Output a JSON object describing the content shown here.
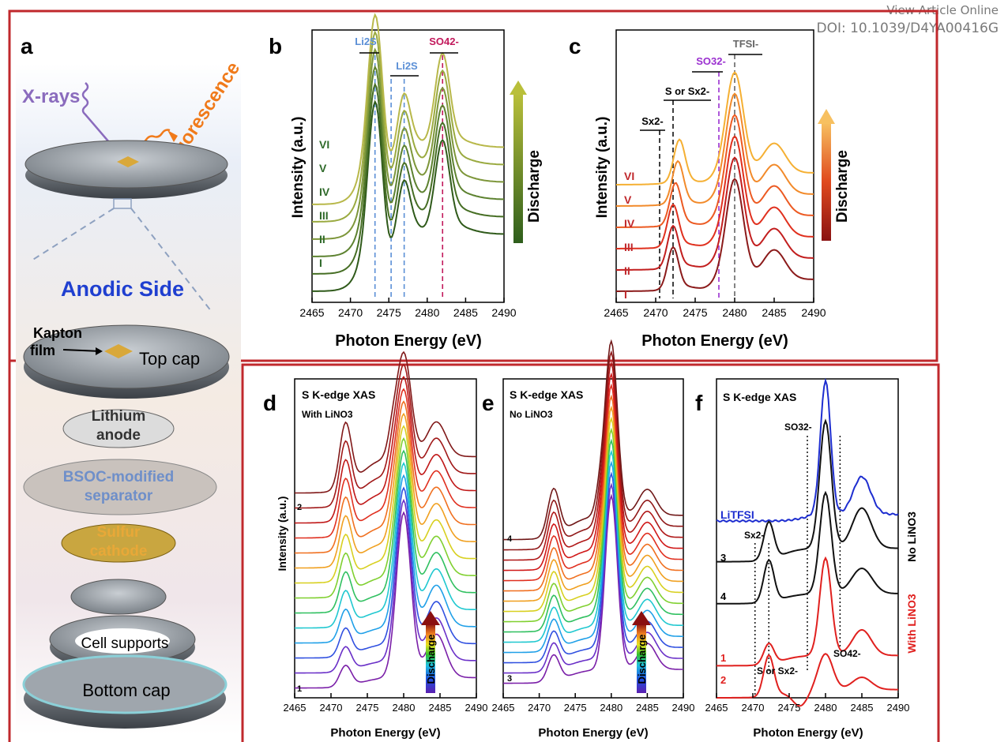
{
  "header": {
    "view_online": "View Article Online",
    "doi": "DOI: 10.1039/D4YA00416G"
  },
  "colors": {
    "frame_red": "#c0282c",
    "anodic_blue": "#1f3fd0",
    "xray_purple": "#8a6bbd",
    "fluorescence_orange": "#f07a1a",
    "li2s_blue": "#5b8fd6",
    "so4_red": "#c2185b",
    "so3_purple": "#9b30d0"
  },
  "panel_a": {
    "label": "a",
    "xrays": "X-rays",
    "fluorescence": "Fluorescence",
    "anodic_side": "Anodic Side",
    "kapton": "Kapton",
    "film": "film",
    "top_cap": "Top cap",
    "lithium_1": "Lithium",
    "lithium_2": "anode",
    "bsoc_1": "BSOC-modified",
    "bsoc_2": "separator",
    "sulfur_1": "Sulfur",
    "sulfur_2": "cathode",
    "cell_supports": "Cell supports",
    "bottom_cap": "Bottom cap"
  },
  "panel_b": {
    "label": "b",
    "ylabel": "Intensity (a.u.)",
    "xlabel": "Photon Energy (eV)",
    "arrow_label": "Discharge",
    "markers": [
      "Li2S",
      "Li2S",
      "SO42-"
    ],
    "stage_labels": [
      "VI",
      "V",
      "IV",
      "III",
      "II",
      "I"
    ]
  },
  "panel_c": {
    "label": "c",
    "ylabel": "Intensity (a.u.)",
    "xlabel": "Photon Energy (eV)",
    "arrow_label": "Discharge",
    "markers": [
      "Sx2-",
      "S or Sx2-",
      "SO32-",
      "TFSI-"
    ],
    "stage_labels": [
      "VI",
      "V",
      "IV",
      "III",
      "II",
      "I"
    ]
  },
  "panel_d": {
    "label": "d",
    "title": "S K-edge XAS",
    "subtitle": "With LiNO3",
    "ylabel": "Intensity (a.u.)",
    "xlabel": "Photon Energy (eV)",
    "arrow_label": "Discharge",
    "top_index": "2",
    "bottom_index": "1"
  },
  "panel_e": {
    "label": "e",
    "title": "S K-edge XAS",
    "subtitle": "No LiNO3",
    "xlabel": "Photon Energy (eV)",
    "arrow_label": "Discharge",
    "top_index": "4",
    "bottom_index": "3"
  },
  "panel_f": {
    "label": "f",
    "title": "S K-edge XAS",
    "xlabel": "Photon Energy (eV)",
    "litfsi": "LiTFSI",
    "so3": "SO32-",
    "sx": "Sx2-",
    "s_or_sx": "S or Sx2-",
    "so4": "SO42-",
    "no_lino3": "No LiNO3",
    "with_lino3": "With LiNO3",
    "curve_labels": [
      "3",
      "4",
      "1",
      "2"
    ]
  },
  "chart_data": [
    {
      "type": "line",
      "panel": "b",
      "xlabel": "Photon Energy (eV)",
      "ylabel": "Intensity (a.u.)",
      "xlim": [
        2465,
        2490
      ],
      "xticks": [
        2465,
        2470,
        2475,
        2480,
        2485,
        2490
      ],
      "series": [
        {
          "name": "I",
          "color": "#2f5a1a",
          "peaks": [
            2473.2,
            2475.3,
            2477.0,
            2482.0
          ]
        },
        {
          "name": "II",
          "color": "#466e24",
          "peaks": [
            2473.2,
            2475.3,
            2477.0,
            2482.0
          ]
        },
        {
          "name": "III",
          "color": "#5d8230",
          "peaks": [
            2473.2,
            2475.3,
            2477.0,
            2482.0
          ]
        },
        {
          "name": "IV",
          "color": "#7d963a",
          "peaks": [
            2473.2,
            2475.3,
            2477.0,
            2482.0
          ]
        },
        {
          "name": "V",
          "color": "#9aaa40",
          "peaks": [
            2473.2,
            2475.3,
            2477.0,
            2482.0
          ]
        },
        {
          "name": "VI",
          "color": "#b8b84a",
          "peaks": [
            2473.2,
            2475.3,
            2477.0,
            2482.0
          ]
        }
      ],
      "markers": [
        2473.2,
        2475.3,
        2477.0,
        2482.0
      ]
    },
    {
      "type": "line",
      "panel": "c",
      "xlabel": "Photon Energy (eV)",
      "ylabel": "Intensity (a.u.)",
      "xlim": [
        2465,
        2490
      ],
      "xticks": [
        2465,
        2470,
        2475,
        2480,
        2485,
        2490
      ],
      "series": [
        {
          "name": "I",
          "color": "#8b1a1a",
          "peaks": [
            2472.2,
            2480.0,
            2485.0
          ]
        },
        {
          "name": "II",
          "color": "#c21e1e",
          "peaks": [
            2472.2,
            2480.0,
            2485.0
          ]
        },
        {
          "name": "III",
          "color": "#e0301e",
          "peaks": [
            2472.2,
            2480.0,
            2485.0
          ]
        },
        {
          "name": "IV",
          "color": "#ec5a22",
          "peaks": [
            2472.5,
            2480.0,
            2485.0
          ]
        },
        {
          "name": "V",
          "color": "#f28a2a",
          "peaks": [
            2472.8,
            2480.0,
            2485.0
          ]
        },
        {
          "name": "VI",
          "color": "#f5b033",
          "peaks": [
            2473.0,
            2480.0,
            2485.0
          ]
        }
      ],
      "markers": [
        2470.5,
        2472.2,
        2478.0,
        2480.0
      ]
    },
    {
      "type": "line",
      "panel": "d",
      "title": "S K-edge XAS",
      "xlabel": "Photon Energy (eV)",
      "ylabel": "Intensity (a.u.)",
      "xlim": [
        2465,
        2490
      ],
      "xticks": [
        2465,
        2470,
        2475,
        2480,
        2485,
        2490
      ],
      "n_curves": 14,
      "peaks": [
        2472.0,
        2480.0,
        2484.5
      ]
    },
    {
      "type": "line",
      "panel": "e",
      "title": "S K-edge XAS",
      "xlabel": "Photon Energy (eV)",
      "xlim": [
        2465,
        2490
      ],
      "xticks": [
        2465,
        2470,
        2475,
        2480,
        2485,
        2490
      ],
      "n_curves": 15,
      "peaks": [
        2472.0,
        2480.0,
        2485.0
      ]
    },
    {
      "type": "line",
      "panel": "f",
      "title": "S K-edge XAS",
      "xlabel": "Photon Energy (eV)",
      "xlim": [
        2465,
        2490
      ],
      "xticks": [
        2465,
        2470,
        2475,
        2480,
        2485,
        2490
      ],
      "series": [
        {
          "name": "LiTFSI",
          "color": "#1e2ed0",
          "peaks": [
            2480.0,
            2485.0
          ]
        },
        {
          "name": "3",
          "color": "#111111",
          "peaks": [
            2472.2,
            2480.0,
            2485.0
          ]
        },
        {
          "name": "4",
          "color": "#111111",
          "peaks": [
            2472.2,
            2480.0,
            2485.0
          ]
        },
        {
          "name": "1",
          "color": "#e0201e",
          "peaks": [
            2472.2,
            2480.0,
            2485.0
          ]
        },
        {
          "name": "2",
          "color": "#e0201e",
          "peaks": [
            2472.2,
            2480.0,
            2485.0
          ]
        }
      ],
      "markers": [
        2470.3,
        2472.2,
        2477.5,
        2482.0
      ]
    }
  ]
}
